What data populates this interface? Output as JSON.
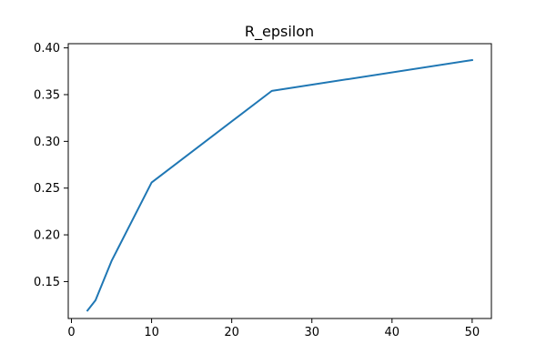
{
  "chart_data": {
    "type": "line",
    "title": "R_epsilon",
    "xlabel": "",
    "ylabel": "",
    "xlim": [
      -0.4,
      52.4
    ],
    "ylim": [
      0.1105,
      0.4045
    ],
    "grid": false,
    "legend": "none",
    "x_ticks": [
      {
        "value": 0,
        "label": "0"
      },
      {
        "value": 10,
        "label": "10"
      },
      {
        "value": 20,
        "label": "20"
      },
      {
        "value": 30,
        "label": "30"
      },
      {
        "value": 40,
        "label": "40"
      },
      {
        "value": 50,
        "label": "50"
      }
    ],
    "y_ticks": [
      {
        "value": 0.15,
        "label": "0.15"
      },
      {
        "value": 0.2,
        "label": "0.20"
      },
      {
        "value": 0.25,
        "label": "0.25"
      },
      {
        "value": 0.3,
        "label": "0.30"
      },
      {
        "value": 0.35,
        "label": "0.35"
      },
      {
        "value": 0.4,
        "label": "0.40"
      }
    ],
    "series": [
      {
        "color": "#1f77b4",
        "x": [
          2,
          3,
          5,
          10,
          25,
          50
        ],
        "y": [
          0.119,
          0.13,
          0.172,
          0.256,
          0.354,
          0.387
        ]
      }
    ]
  }
}
